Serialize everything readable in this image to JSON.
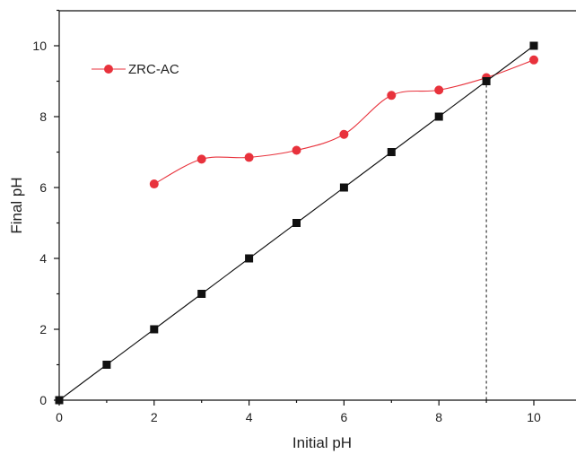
{
  "chart_data": {
    "type": "line",
    "xlabel": "Initial pH",
    "ylabel": "Final pH",
    "xlim": [
      0,
      11
    ],
    "ylim": [
      0,
      11
    ],
    "x_ticks": [
      "0",
      "2",
      "4",
      "6",
      "8",
      "10"
    ],
    "y_ticks": [
      "0",
      "2",
      "4",
      "6",
      "8",
      "10"
    ],
    "grid": false,
    "legend_position": "top-left",
    "series": [
      {
        "name": "ZRC-AC",
        "color": "#e8323c",
        "marker": "circle",
        "smooth": true,
        "x": [
          2,
          3,
          4,
          5,
          6,
          7,
          8,
          9,
          10
        ],
        "y": [
          6.1,
          6.8,
          6.85,
          7.05,
          7.5,
          8.6,
          8.75,
          9.1,
          9.6
        ]
      },
      {
        "color": "#111111",
        "marker": "square",
        "smooth": false,
        "x": [
          0,
          1,
          2,
          3,
          4,
          5,
          6,
          7,
          8,
          9,
          10
        ],
        "y": [
          0,
          1,
          2,
          3,
          4,
          5,
          6,
          7,
          8,
          9,
          10
        ]
      }
    ],
    "reference_line": {
      "x": 9,
      "style": "dashed"
    }
  }
}
